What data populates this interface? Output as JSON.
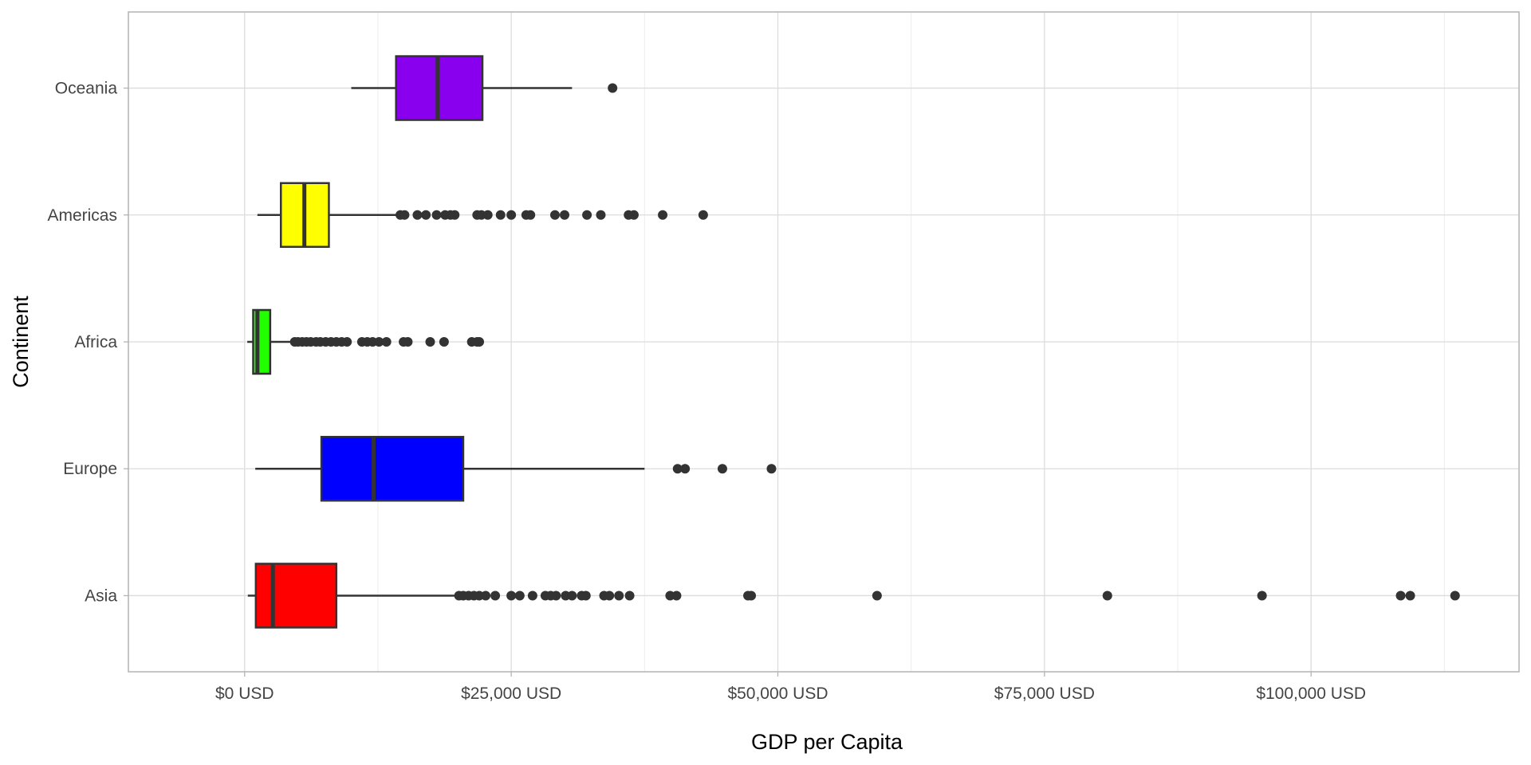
{
  "chart_data": {
    "type": "boxplot",
    "orientation": "horizontal",
    "xlabel": "GDP per Capita",
    "ylabel": "Continent",
    "xlim": [
      -10900,
      119500
    ],
    "x_ticks": [
      0,
      25000,
      50000,
      75000,
      100000
    ],
    "x_tick_labels": [
      "$0 USD",
      "$25,000 USD",
      "$50,000 USD",
      "$75,000 USD",
      "$100,000 USD"
    ],
    "categories": [
      "Asia",
      "Europe",
      "Africa",
      "Americas",
      "Oceania"
    ],
    "grid": true,
    "legend": "none",
    "series": [
      {
        "category": "Asia",
        "color": "#ff0000",
        "whisker_low": 300,
        "q1": 1050,
        "median": 2650,
        "q3": 8600,
        "whisker_high": 20000,
        "outliers": [
          20100,
          20500,
          21000,
          21500,
          22000,
          22600,
          23500,
          25000,
          25800,
          27000,
          28200,
          28700,
          29200,
          30100,
          30700,
          31600,
          32000,
          33700,
          34200,
          35100,
          36100,
          39900,
          40500,
          47200,
          47500,
          59300,
          80900,
          95400,
          108400,
          109300,
          113500
        ]
      },
      {
        "category": "Europe",
        "color": "#0000ff",
        "whisker_low": 1000,
        "q1": 7200,
        "median": 12100,
        "q3": 20500,
        "whisker_high": 37500,
        "outliers": [
          40600,
          41300,
          44800,
          49400
        ]
      },
      {
        "category": "Africa",
        "color": "#22ff00",
        "whisker_low": 250,
        "q1": 800,
        "median": 1200,
        "q3": 2400,
        "whisker_high": 4600,
        "outliers": [
          4700,
          5000,
          5400,
          5800,
          6200,
          6700,
          7100,
          7600,
          8100,
          8600,
          9100,
          9600,
          11000,
          11500,
          12000,
          12600,
          13300,
          14900,
          15300,
          17400,
          18700,
          21300,
          21800,
          22000
        ]
      },
      {
        "category": "Americas",
        "color": "#ffff00",
        "whisker_low": 1200,
        "q1": 3400,
        "median": 5600,
        "q3": 7900,
        "whisker_high": 14500,
        "outliers": [
          14600,
          15000,
          16200,
          17000,
          18000,
          18800,
          19300,
          19700,
          21800,
          22200,
          22800,
          24000,
          25000,
          26400,
          26800,
          29100,
          30000,
          32100,
          33400,
          36000,
          36500,
          39200,
          43000
        ]
      },
      {
        "category": "Oceania",
        "color": "#8800ee",
        "whisker_low": 10000,
        "q1": 14200,
        "median": 18100,
        "q3": 22300,
        "whisker_high": 30700,
        "outliers": [
          34500
        ]
      }
    ]
  }
}
